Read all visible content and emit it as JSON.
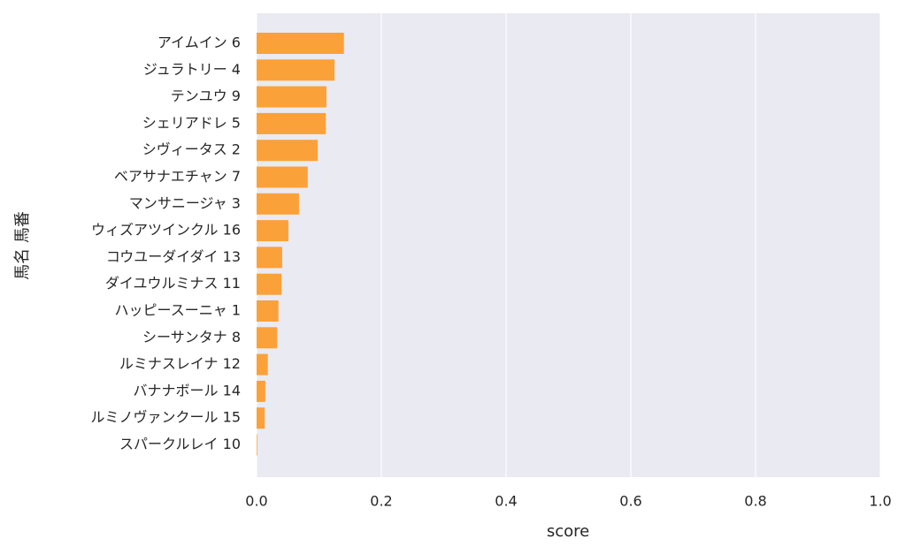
{
  "chart_data": {
    "type": "barh",
    "xlabel": "score",
    "ylabel": "馬名 馬番",
    "categories": [
      "アイムイン 6",
      "ジュラトリー 4",
      "テンユウ 9",
      "シェリアドレ 5",
      "シヴィータス 2",
      "ベアサナエチャン 7",
      "マンサニージャ 3",
      "ウィズアツインクル 16",
      "コウユーダイダイ 13",
      "ダイユウルミナス 11",
      "ハッピースーニャ 1",
      "シーサンタナ 8",
      "ルミナスレイナ 12",
      "バナナボール 14",
      "ルミノヴァンクール 15",
      "スパークルレイ 10"
    ],
    "values": [
      0.14,
      0.125,
      0.112,
      0.111,
      0.098,
      0.082,
      0.068,
      0.051,
      0.041,
      0.04,
      0.035,
      0.033,
      0.018,
      0.014,
      0.013,
      0.001
    ],
    "color": "#fba13a",
    "xlim": [
      0,
      1
    ],
    "xticks": [
      {
        "value": 0,
        "label": "0.0"
      },
      0.2,
      0.4,
      0.6,
      0.8,
      {
        "value": 1,
        "label": "1.0"
      }
    ],
    "grid": true
  }
}
